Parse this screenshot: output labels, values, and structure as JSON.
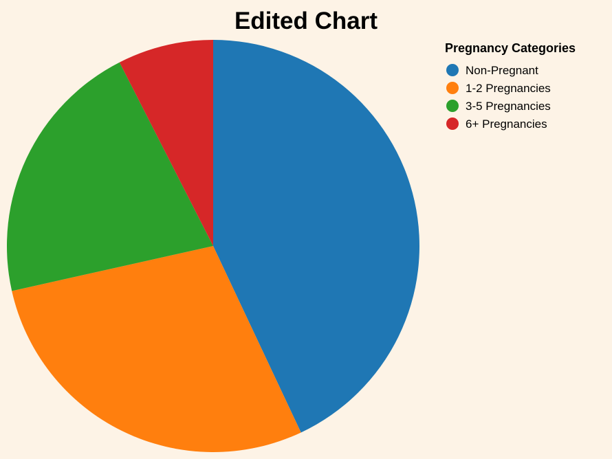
{
  "chart_data": {
    "type": "pie",
    "title": "Edited Chart",
    "legend_title": "Pregnancy Categories",
    "legend_position": "top-right",
    "categories": [
      "Non-Pregnant",
      "1-2 Pregnancies",
      "3-5 Pregnancies",
      "6+ Pregnancies"
    ],
    "values": [
      43,
      28.5,
      21,
      7.5
    ],
    "colors": [
      "#1f77b4",
      "#ff7f0e",
      "#2ca02c",
      "#d62728"
    ]
  }
}
